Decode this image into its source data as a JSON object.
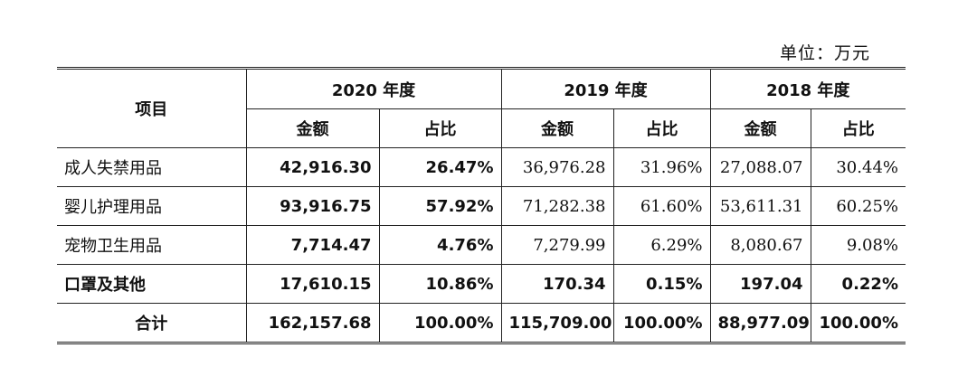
{
  "unit_label": "单位：万元",
  "header": {
    "item": "项目",
    "years": [
      "2020 年度",
      "2019 年度",
      "2018 年度"
    ],
    "amount": "金额",
    "ratio": "占比"
  },
  "rows": [
    {
      "name": "成人失禁用品",
      "v2020": "42,916.30",
      "p2020": "26.47%",
      "v2019": "36,976.28",
      "p2019": "31.96%",
      "v2018": "27,088.07",
      "p2018": "30.44%"
    },
    {
      "name": "婴儿护理用品",
      "v2020": "93,916.75",
      "p2020": "57.92%",
      "v2019": "71,282.38",
      "p2019": "61.60%",
      "v2018": "53,611.31",
      "p2018": "60.25%"
    },
    {
      "name": "宠物卫生用品",
      "v2020": "7,714.47",
      "p2020": "4.76%",
      "v2019": "7,279.99",
      "p2019": "6.29%",
      "v2018": "8,080.67",
      "p2018": "9.08%"
    },
    {
      "name": "口罩及其他",
      "v2020": "17,610.15",
      "p2020": "10.86%",
      "v2019": "170.34",
      "p2019": "0.15%",
      "v2018": "197.04",
      "p2018": "0.22%"
    },
    {
      "name": "合计",
      "v2020": "162,157.68",
      "p2020": "100.00%",
      "v2019": "115,709.00",
      "p2019": "100.00%",
      "v2018": "88,977.09",
      "p2018": "100.00%"
    }
  ]
}
